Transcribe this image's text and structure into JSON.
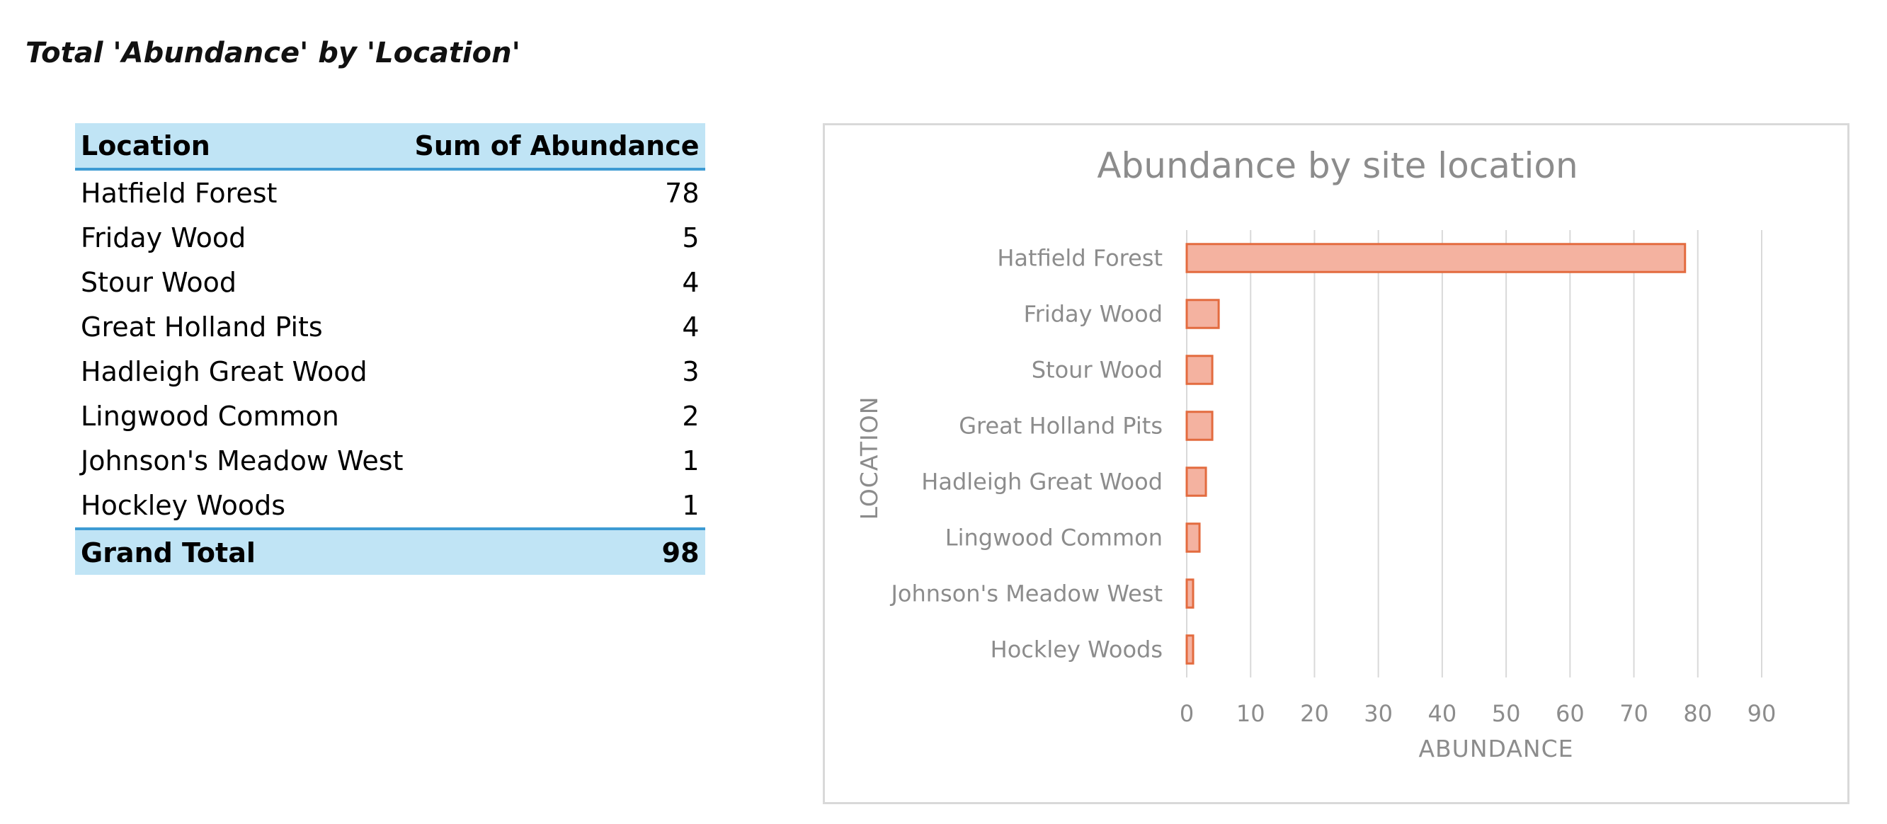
{
  "header": {
    "title": "Total 'Abundance' by 'Location'"
  },
  "table": {
    "columns": [
      "Location",
      "Sum of Abundance"
    ],
    "rows": [
      {
        "location": "Hatfield Forest",
        "sum": "78"
      },
      {
        "location": "Friday Wood",
        "sum": "5"
      },
      {
        "location": "Stour Wood",
        "sum": "4"
      },
      {
        "location": "Great Holland Pits",
        "sum": "4"
      },
      {
        "location": "Hadleigh Great Wood",
        "sum": "3"
      },
      {
        "location": "Lingwood Common",
        "sum": "2"
      },
      {
        "location": "Johnson's Meadow West",
        "sum": "1"
      },
      {
        "location": "Hockley Woods",
        "sum": "1"
      }
    ],
    "total": {
      "label": "Grand Total",
      "sum": "98"
    }
  },
  "colors": {
    "header_fill": "#c0e4f5",
    "header_rule": "#3d9bd3",
    "bar_fill": "#f4b2a0",
    "bar_stroke": "#e36b3f"
  },
  "chart_data": {
    "type": "bar",
    "orientation": "horizontal",
    "title": "Abundance by site location",
    "xlabel": "ABUNDANCE",
    "ylabel": "LOCATION",
    "categories": [
      "Hatfield Forest",
      "Friday Wood",
      "Stour Wood",
      "Great Holland Pits",
      "Hadleigh Great Wood",
      "Lingwood Common",
      "Johnson's Meadow West",
      "Hockley Woods"
    ],
    "values": [
      78,
      5,
      4,
      4,
      3,
      2,
      1,
      1
    ],
    "xlim": [
      0,
      90
    ],
    "xticks": [
      0,
      10,
      20,
      30,
      40,
      50,
      60,
      70,
      80,
      90
    ],
    "grid": true,
    "legend": "none"
  }
}
